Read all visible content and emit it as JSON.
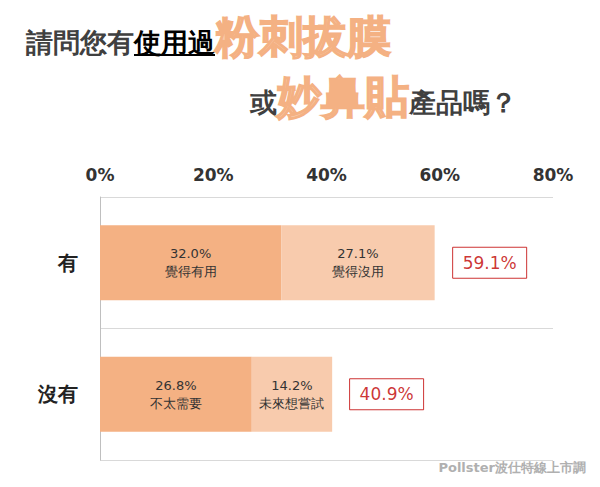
{
  "chart_data": {
    "type": "bar",
    "title": [
      [
        {
          "text": "請問您有",
          "style": "plain"
        },
        {
          "text": "使用過",
          "style": "underline"
        },
        {
          "text": "粉刺拔膜",
          "style": "highlight"
        }
      ],
      [
        {
          "text": "或",
          "style": "plain"
        },
        {
          "text": "妙鼻貼",
          "style": "highlight"
        },
        {
          "text": "產品嗎？",
          "style": "plain"
        }
      ]
    ],
    "source": "Pollster波仕特線上市調",
    "categories": [
      "有",
      "沒有"
    ],
    "orientation": "horizontal",
    "stacked": true,
    "data_labels": true,
    "grid": false,
    "xlim": [
      0,
      80
    ],
    "xticks": [
      {
        "value": 0,
        "label": "0%"
      },
      {
        "value": 20,
        "label": "20%"
      },
      {
        "value": 40,
        "label": "40%"
      },
      {
        "value": 60,
        "label": "60%"
      },
      {
        "value": 80,
        "label": "80%"
      }
    ],
    "series": [
      {
        "name": "覺得有用",
        "color": "#f4b183",
        "values": [
          32.0,
          null
        ],
        "value_labels": [
          "32.0%",
          null
        ]
      },
      {
        "name": "覺得沒用",
        "color": "#f8cbad",
        "values": [
          27.1,
          null
        ],
        "value_labels": [
          "27.1%",
          null
        ]
      },
      {
        "name": "不太需要",
        "color": "#f4b183",
        "values": [
          null,
          26.8
        ],
        "value_labels": [
          null,
          "26.8%"
        ]
      },
      {
        "name": "未來想嘗試",
        "color": "#f8cbad",
        "values": [
          null,
          14.2
        ],
        "value_labels": [
          null,
          "14.2%"
        ]
      }
    ],
    "totals": [
      59.1,
      40.9
    ],
    "total_labels": [
      "59.1%",
      "40.9%"
    ]
  }
}
